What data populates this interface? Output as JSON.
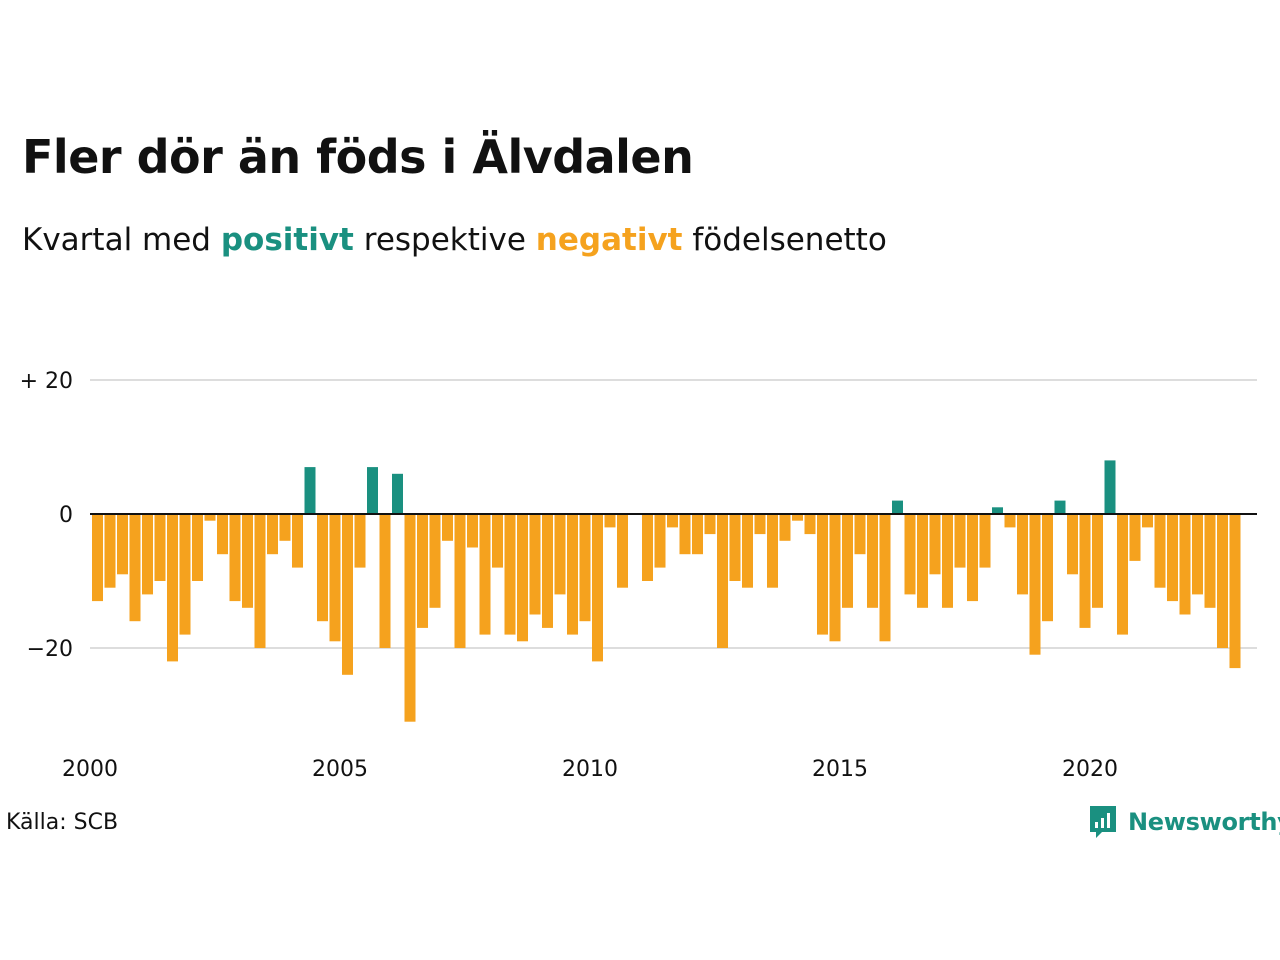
{
  "header": {
    "title": "Fler dör än föds i Älvdalen",
    "subtitle_prefix": "Kvartal med",
    "subtitle_positive": "positivt",
    "subtitle_middle": "respektive",
    "subtitle_negative": "negativt",
    "subtitle_suffix": "födelsenetto"
  },
  "footer": {
    "source": "Källa: SCB",
    "brand": "Newsworthy"
  },
  "colors": {
    "positive": "#1a9080",
    "negative": "#f5a21e",
    "grid": "#dddddd",
    "zero_line": "#111111",
    "brand": "#1a9080"
  },
  "chart_data": {
    "type": "bar",
    "title": "",
    "xlabel": "",
    "ylabel": "",
    "ylim": [
      -32,
      20
    ],
    "y_ticks": [
      {
        "value": 20,
        "label": "+ 20"
      },
      {
        "value": 0,
        "label": "0"
      },
      {
        "value": -20,
        "label": "−20"
      }
    ],
    "x_ticks": [
      "2000",
      "2005",
      "2010",
      "2015",
      "2020"
    ],
    "start_year": 2000,
    "values": [
      -13,
      -11,
      -9,
      -16,
      -12,
      -10,
      -22,
      -18,
      -10,
      -1,
      -6,
      -13,
      -14,
      -20,
      -6,
      -4,
      -8,
      7,
      -16,
      -19,
      -24,
      -8,
      7,
      -20,
      6,
      -31,
      -17,
      -14,
      -4,
      -20,
      -5,
      -18,
      -8,
      -18,
      -19,
      -15,
      -17,
      -12,
      -18,
      -16,
      -22,
      -2,
      -11,
      0,
      -10,
      -8,
      -2,
      -6,
      -6,
      -3,
      -20,
      -10,
      -11,
      -3,
      -11,
      -4,
      -1,
      -3,
      -18,
      -19,
      -14,
      -6,
      -14,
      -19,
      2,
      -12,
      -14,
      -9,
      -14,
      -8,
      -13,
      -8,
      1,
      -2,
      -12,
      -21,
      -16,
      2,
      -9,
      -17,
      -14,
      8,
      -18,
      -7,
      -2,
      -11,
      -13,
      -15,
      -12,
      -14,
      -20,
      -23
    ]
  }
}
